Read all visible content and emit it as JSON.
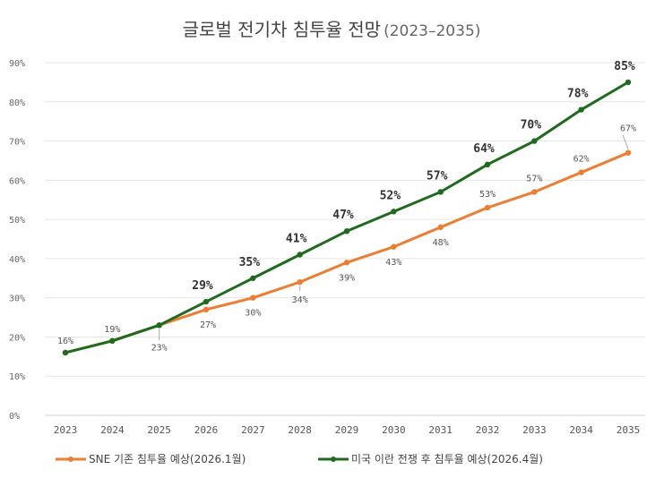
{
  "chart_data": {
    "type": "line",
    "title": "글로벌 전기차 침투율 전망",
    "subtitle": "(2023–2035)",
    "categories": [
      "2023",
      "2024",
      "2025",
      "2026",
      "2027",
      "2028",
      "2029",
      "2030",
      "2031",
      "2032",
      "2033",
      "2034",
      "2035"
    ],
    "yticks": [
      "0%",
      "10%",
      "20%",
      "30%",
      "40%",
      "50%",
      "60%",
      "70%",
      "80%",
      "90%"
    ],
    "ylim": [
      0,
      90
    ],
    "grid": true,
    "legend_position": "bottom",
    "series": [
      {
        "name": "SNE 기존 침투율 예상(2026.1월)",
        "color": "#ed7d31",
        "values": [
          16,
          19,
          23,
          27,
          30,
          34,
          39,
          43,
          48,
          53,
          57,
          62,
          67
        ],
        "labels": [
          "16%",
          "19%",
          "23%",
          "27%",
          "30%",
          "34%",
          "39%",
          "43%",
          "48%",
          "53%",
          "57%",
          "62%",
          "67%"
        ]
      },
      {
        "name": "미국 이란 전쟁 후 침투율 예상(2026.4월)",
        "color": "#1e6b1e",
        "values": [
          16,
          19,
          23,
          29,
          35,
          41,
          47,
          52,
          57,
          64,
          70,
          78,
          85
        ],
        "labels": [
          "",
          "",
          "",
          "29%",
          "35%",
          "41%",
          "47%",
          "52%",
          "57%",
          "64%",
          "70%",
          "78%",
          "85%"
        ]
      }
    ]
  }
}
